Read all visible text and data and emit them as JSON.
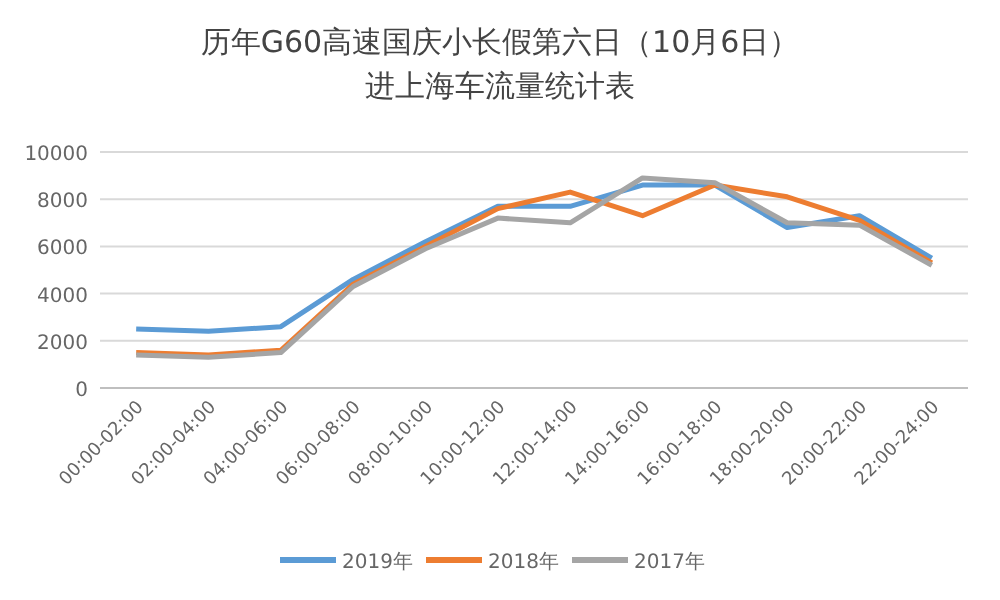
{
  "chart_data": {
    "type": "line",
    "title": "历年G60高速国庆小长假第六日（10月6日）进上海车流量统计表",
    "categories": [
      "00:00-02:00",
      "02:00-04:00",
      "04:00-06:00",
      "06:00-08:00",
      "08:00-10:00",
      "10:00-12:00",
      "12:00-14:00",
      "14:00-16:00",
      "16:00-18:00",
      "18:00-20:00",
      "20:00-22:00",
      "22:00-24:00"
    ],
    "series": [
      {
        "name": "2019年",
        "color": "#5b9bd5",
        "values": [
          2500,
          2400,
          2600,
          4600,
          6200,
          7700,
          7700,
          8600,
          8600,
          6800,
          7300,
          5500
        ]
      },
      {
        "name": "2018年",
        "color": "#ed7d31",
        "values": [
          1500,
          1400,
          1600,
          4400,
          6000,
          7600,
          8300,
          7300,
          8600,
          8100,
          7100,
          5300
        ]
      },
      {
        "name": "2017年",
        "color": "#a5a5a5",
        "values": [
          1400,
          1300,
          1500,
          4300,
          5900,
          7200,
          7000,
          8900,
          8700,
          7000,
          6900,
          5200
        ]
      }
    ],
    "ylim": [
      0,
      10000
    ],
    "yticks": [
      0,
      2000,
      4000,
      6000,
      8000,
      10000
    ],
    "grid": "y",
    "legend": "bottom"
  }
}
